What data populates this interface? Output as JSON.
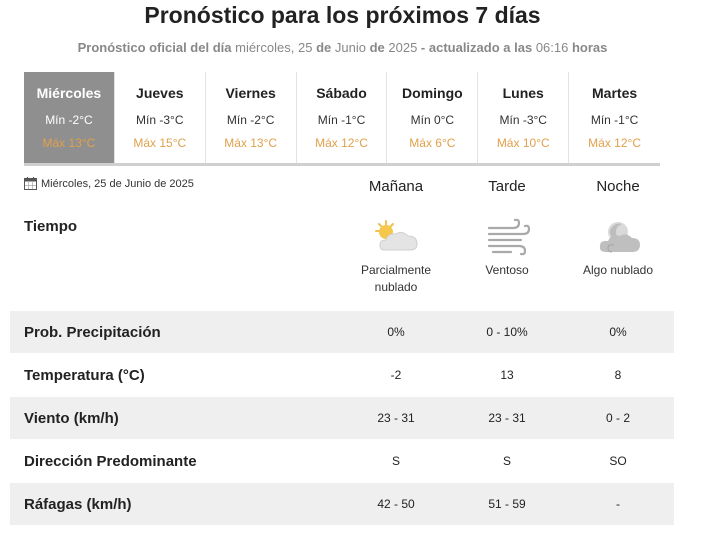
{
  "header": {
    "title": "Pronóstico para los próximos 7 días",
    "subtitle_prefix": "Pronóstico oficial del día",
    "subtitle_weekday": "miércoles,",
    "subtitle_day": "25",
    "subtitle_de1": "de",
    "subtitle_month": "Junio",
    "subtitle_de2": "de",
    "subtitle_year": "2025",
    "subtitle_updated": "- actualizado a las",
    "subtitle_time": "06:16",
    "subtitle_hours": "horas"
  },
  "days": [
    {
      "name": "Miércoles",
      "min": "Mín -2°C",
      "max": "Máx 13°C",
      "active": true
    },
    {
      "name": "Jueves",
      "min": "Mín -3°C",
      "max": "Máx 15°C",
      "active": false
    },
    {
      "name": "Viernes",
      "min": "Mín -2°C",
      "max": "Máx 13°C",
      "active": false
    },
    {
      "name": "Sábado",
      "min": "Mín -1°C",
      "max": "Máx 12°C",
      "active": false
    },
    {
      "name": "Domingo",
      "min": "Mín 0°C",
      "max": "Máx 6°C",
      "active": false
    },
    {
      "name": "Lunes",
      "min": "Mín -3°C",
      "max": "Máx 10°C",
      "active": false
    },
    {
      "name": "Martes",
      "min": "Mín -1°C",
      "max": "Máx 12°C",
      "active": false
    }
  ],
  "detail": {
    "date": "Miércoles, 25 de Junio de 2025",
    "columns": [
      "Mañana",
      "Tarde",
      "Noche"
    ],
    "tiempo_label": "Tiempo",
    "weather": [
      {
        "icon": "partly-cloudy-icon",
        "desc1": "Parcialmente",
        "desc2": "nublado"
      },
      {
        "icon": "wind-icon",
        "desc1": "Ventoso",
        "desc2": ""
      },
      {
        "icon": "night-cloudy-icon",
        "desc1": "Algo nublado",
        "desc2": ""
      }
    ],
    "rows": [
      {
        "label": "Prob. Precipitación",
        "values": [
          "0%",
          "0 - 10%",
          "0%"
        ]
      },
      {
        "label": "Temperatura (°C)",
        "values": [
          "-2",
          "13",
          "8"
        ]
      },
      {
        "label": "Viento (km/h)",
        "values": [
          "23 - 31",
          "23 - 31",
          "0 - 2"
        ]
      },
      {
        "label": "Dirección Predominante",
        "values": [
          "S",
          "S",
          "SO"
        ]
      },
      {
        "label": "Ráfagas (km/h)",
        "values": [
          "42 - 50",
          "51 - 59",
          "-"
        ]
      }
    ]
  },
  "colors": {
    "active_day_bg": "#8f8f8f",
    "max_temp": "#e0a14c",
    "row_shade": "#efefef"
  }
}
